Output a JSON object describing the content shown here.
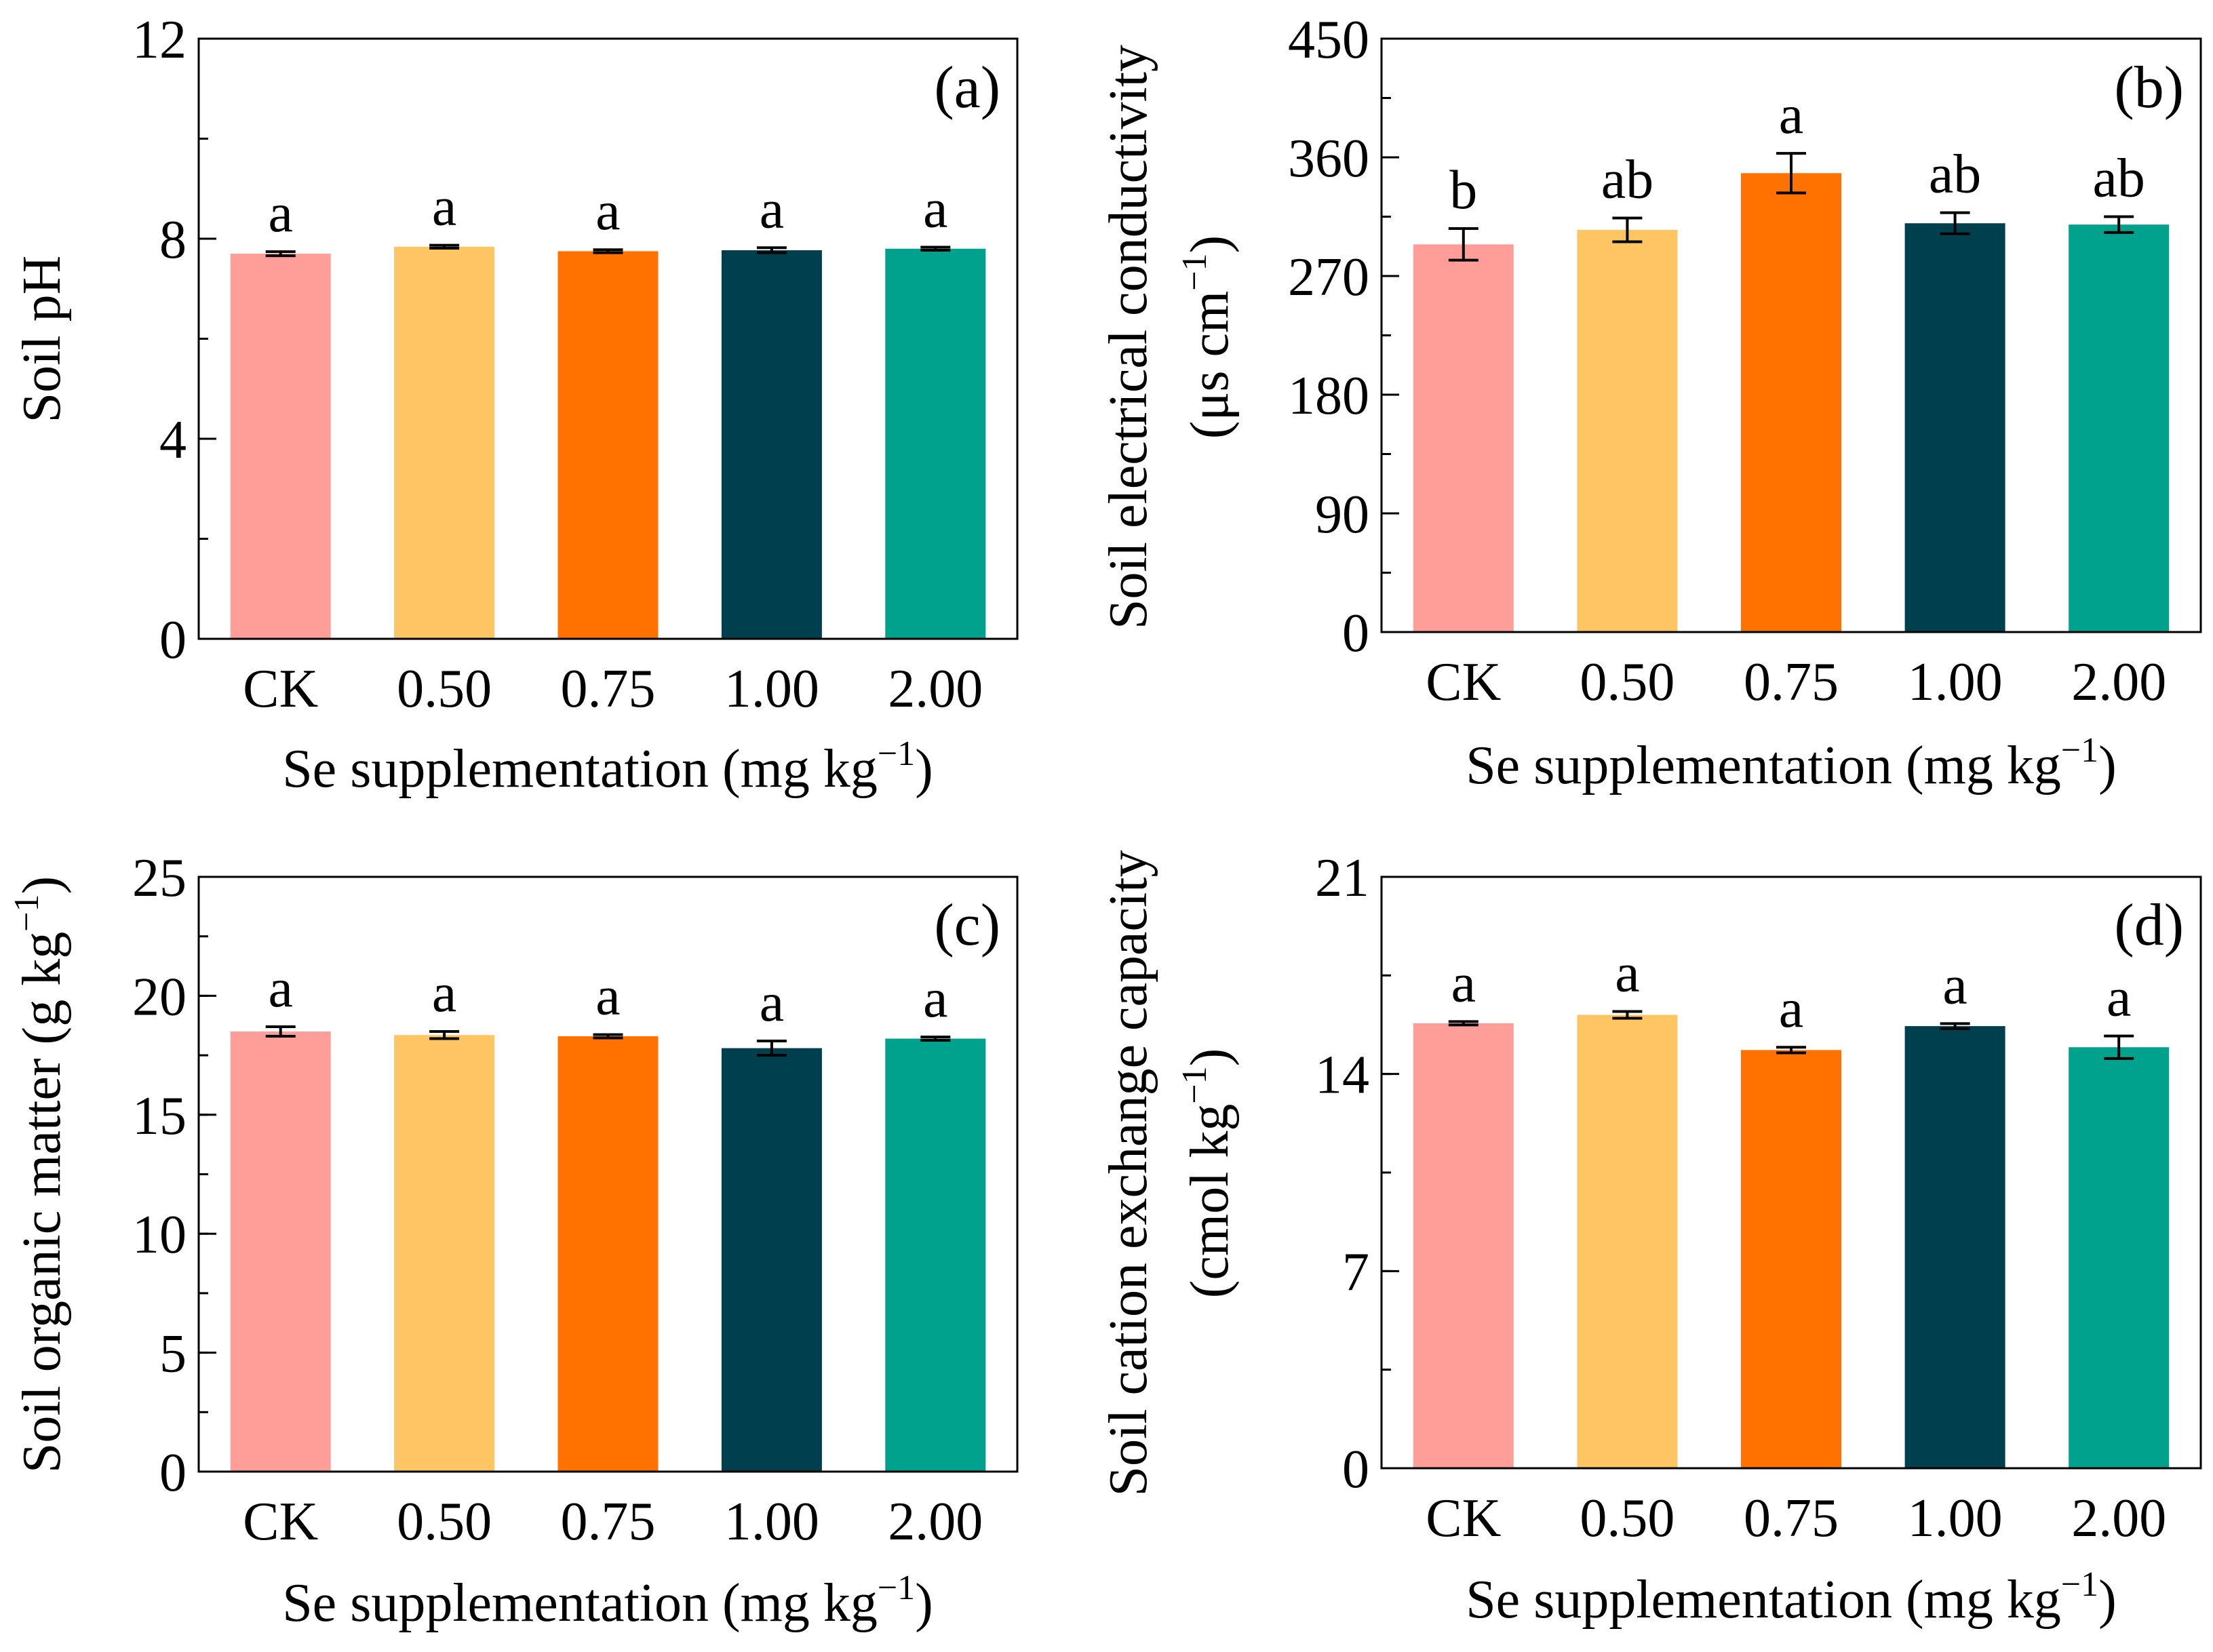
{
  "chart_data": [
    {
      "type": "bar",
      "panel": "(a)",
      "categories": [
        "CK",
        "0.50",
        "0.75",
        "1.00",
        "2.00"
      ],
      "values": [
        7.7,
        7.84,
        7.75,
        7.77,
        7.8
      ],
      "errors": [
        0.04,
        0.03,
        0.03,
        0.05,
        0.03
      ],
      "significance": [
        "a",
        "a",
        "a",
        "a",
        "a"
      ],
      "colors": [
        "#FF9E99",
        "#FFC562",
        "#FF7200",
        "#003F4E",
        "#00A28D"
      ],
      "xlabel": "Se supplementation (mg kg",
      "xlabel_sup": "−1",
      "xlabel_end": ")",
      "ylabel": "Soil pH",
      "ylabel_sup": "",
      "ylabel_end": "",
      "ylabel2": "",
      "ylabel2_sup": "",
      "ylabel2_end": "",
      "ylim": [
        0,
        12
      ],
      "yticks": [
        0,
        4,
        8,
        12
      ],
      "ytick_labels": [
        "0",
        "4",
        "8",
        "12"
      ],
      "minor_step": 2
    },
    {
      "type": "bar",
      "panel": "(b)",
      "categories": [
        "CK",
        "0.50",
        "0.75",
        "1.00",
        "2.00"
      ],
      "values": [
        294,
        305,
        348,
        310,
        309
      ],
      "errors": [
        12,
        9,
        15,
        8,
        6
      ],
      "significance": [
        "b",
        "ab",
        "a",
        "ab",
        "ab"
      ],
      "colors": [
        "#FF9E99",
        "#FFC562",
        "#FF7200",
        "#003F4E",
        "#00A28D"
      ],
      "xlabel": "Se supplementation (mg kg",
      "xlabel_sup": "−1",
      "xlabel_end": ")",
      "ylabel": "Soil electrical conductivity",
      "ylabel_sup": "",
      "ylabel_end": "",
      "ylabel2": "(μs cm",
      "ylabel2_sup": "−1",
      "ylabel2_end": ")",
      "ylim": [
        0,
        450
      ],
      "yticks": [
        0,
        90,
        180,
        270,
        360,
        450
      ],
      "ytick_labels": [
        "0",
        "90",
        "180",
        "270",
        "360",
        "450"
      ],
      "minor_step": 45
    },
    {
      "type": "bar",
      "panel": "(c)",
      "categories": [
        "CK",
        "0.50",
        "0.75",
        "1.00",
        "2.00"
      ],
      "values": [
        18.5,
        18.35,
        18.3,
        17.8,
        18.2
      ],
      "errors": [
        0.2,
        0.15,
        0.07,
        0.3,
        0.07
      ],
      "significance": [
        "a",
        "a",
        "a",
        "a",
        "a"
      ],
      "colors": [
        "#FF9E99",
        "#FFC562",
        "#FF7200",
        "#003F4E",
        "#00A28D"
      ],
      "xlabel": "Se supplementation (mg kg",
      "xlabel_sup": "−1",
      "xlabel_end": ")",
      "ylabel": "Soil organic matter (g kg",
      "ylabel_sup": "−1",
      "ylabel_end": ")",
      "ylabel2": "",
      "ylabel2_sup": "",
      "ylabel2_end": "",
      "ylim": [
        0,
        25
      ],
      "yticks": [
        0,
        5,
        10,
        15,
        20,
        25
      ],
      "ytick_labels": [
        "0",
        "5",
        "10",
        "15",
        "20",
        "25"
      ],
      "minor_step": 2.5
    },
    {
      "type": "bar",
      "panel": "(d)",
      "categories": [
        "CK",
        "0.50",
        "0.75",
        "1.00",
        "2.00"
      ],
      "values": [
        15.8,
        16.1,
        14.85,
        15.7,
        14.95
      ],
      "errors": [
        0.06,
        0.12,
        0.1,
        0.09,
        0.4
      ],
      "significance": [
        "a",
        "a",
        "a",
        "a",
        "a"
      ],
      "colors": [
        "#FF9E99",
        "#FFC562",
        "#FF7200",
        "#003F4E",
        "#00A28D"
      ],
      "xlabel": "Se supplementation (mg kg",
      "xlabel_sup": "−1",
      "xlabel_end": ")",
      "ylabel": "Soil cation exchange capacity",
      "ylabel_sup": "",
      "ylabel_end": "",
      "ylabel2": "(cmol kg",
      "ylabel2_sup": "−1",
      "ylabel2_end": ")",
      "ylim": [
        0,
        21
      ],
      "yticks": [
        0,
        7,
        14,
        21
      ],
      "ytick_labels": [
        "0",
        "7",
        "14",
        "21"
      ],
      "minor_step": 3.5
    }
  ]
}
